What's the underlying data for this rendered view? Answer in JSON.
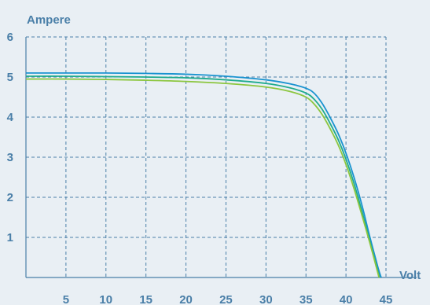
{
  "colors": {
    "background": "#e9eff4",
    "text": "#4a7fa8",
    "grid": "#4a7fa8",
    "axis": "#4a7fa8"
  },
  "chart_data": {
    "type": "line",
    "xlabel": "Volt",
    "ylabel": "Ampere",
    "xlim": [
      0,
      45
    ],
    "ylim": [
      0,
      6
    ],
    "x_ticks": [
      5,
      10,
      15,
      20,
      25,
      30,
      35,
      40,
      45
    ],
    "y_ticks": [
      1,
      2,
      3,
      4,
      5,
      6
    ],
    "grid": true,
    "series": [
      {
        "color": "#1a93d0",
        "points": [
          [
            0,
            5.1
          ],
          [
            5,
            5.1
          ],
          [
            10,
            5.1
          ],
          [
            15,
            5.09
          ],
          [
            20,
            5.07
          ],
          [
            25,
            5.02
          ],
          [
            30,
            4.93
          ],
          [
            33,
            4.83
          ],
          [
            35,
            4.72
          ],
          [
            36,
            4.6
          ],
          [
            37,
            4.35
          ],
          [
            38,
            4.0
          ],
          [
            39,
            3.6
          ],
          [
            40,
            3.1
          ],
          [
            41,
            2.5
          ],
          [
            42,
            1.8
          ],
          [
            43,
            1.0
          ],
          [
            44,
            0.25
          ],
          [
            44.4,
            0
          ]
        ]
      },
      {
        "color": "#1fab8e",
        "points": [
          [
            0,
            5.02
          ],
          [
            5,
            5.02
          ],
          [
            10,
            5.01
          ],
          [
            15,
            5.0
          ],
          [
            20,
            4.98
          ],
          [
            25,
            4.93
          ],
          [
            30,
            4.84
          ],
          [
            33,
            4.73
          ],
          [
            35,
            4.6
          ],
          [
            36,
            4.45
          ],
          [
            37,
            4.2
          ],
          [
            38,
            3.85
          ],
          [
            39,
            3.45
          ],
          [
            40,
            2.95
          ],
          [
            41,
            2.35
          ],
          [
            42,
            1.65
          ],
          [
            43,
            0.9
          ],
          [
            44,
            0.15
          ],
          [
            44.2,
            0
          ]
        ]
      },
      {
        "color": "#8cc63f",
        "points": [
          [
            0,
            4.95
          ],
          [
            5,
            4.95
          ],
          [
            10,
            4.94
          ],
          [
            15,
            4.92
          ],
          [
            20,
            4.89
          ],
          [
            25,
            4.84
          ],
          [
            30,
            4.75
          ],
          [
            33,
            4.64
          ],
          [
            35,
            4.5
          ],
          [
            36,
            4.33
          ],
          [
            37,
            4.07
          ],
          [
            38,
            3.72
          ],
          [
            39,
            3.32
          ],
          [
            40,
            2.82
          ],
          [
            41,
            2.22
          ],
          [
            42,
            1.55
          ],
          [
            43,
            0.85
          ],
          [
            44,
            0.1
          ],
          [
            44.1,
            0
          ]
        ]
      }
    ]
  }
}
